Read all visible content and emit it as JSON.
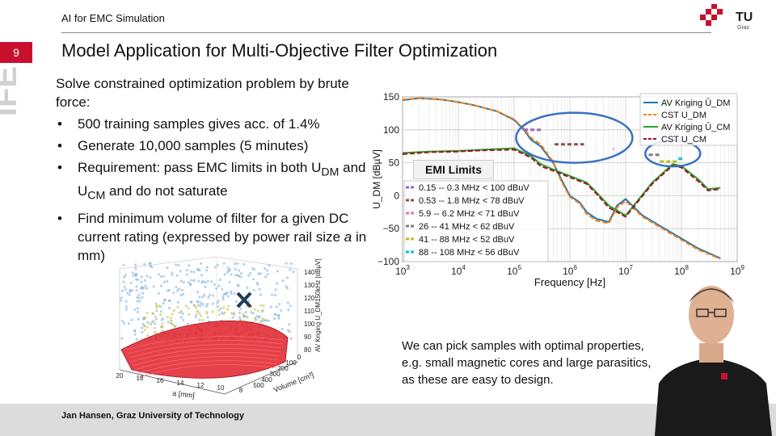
{
  "header": {
    "course": "AI for EMC Simulation",
    "slide_number": "9",
    "side_brand": "IFE",
    "title": "Model Application for Multi-Objective Filter Optimization",
    "logo_text": "TU",
    "logo_sub": "Graz"
  },
  "content": {
    "intro": "Solve constrained optimization problem by brute force:",
    "bullets": [
      "500 training samples gives acc. of 1.4%",
      "Generate 10,000 samples (5 minutes)",
      "Requirement: pass EMC limits in both U",
      "Find minimum volume of filter for a given DC current rating (expressed by power rail size a in mm)"
    ],
    "b3_sub1": "DM",
    "b3_mid": " and U",
    "b3_sub2": "CM",
    "b3_end": " and do not saturate",
    "b4_pre": "Find minimum volume of filter for a given DC current rating (expressed by power rail size ",
    "b4_var": "a",
    "b4_post": " in mm)"
  },
  "emi_label": "EMI Limits",
  "caption": {
    "line1": "We can pick samples with optimal properties,",
    "line2": "e.g. small magnetic cores and large parasitics,",
    "line3": "as these are easy to design."
  },
  "footer": {
    "author": "Jan Hansen, Graz University of Technology"
  },
  "colors": {
    "accent": "#c8102e",
    "line_blue": "#1f77b4",
    "line_orange": "#ff7f0e",
    "line_green": "#2ca02c",
    "line_darkred": "#a0102a",
    "ellipse": "#3a6fc4"
  },
  "chart_data": [
    {
      "type": "line",
      "title": "",
      "xlabel": "Frequency [Hz]",
      "ylabel": "U_DM [dBµV]",
      "x_scale": "log",
      "xlim": [
        1000,
        1000000000
      ],
      "ylim": [
        -100,
        150
      ],
      "x_ticks": [
        "10^3",
        "10^4",
        "10^5",
        "10^6",
        "10^7",
        "10^8",
        "10^9"
      ],
      "y_ticks": [
        -100,
        -50,
        0,
        50,
        100,
        150
      ],
      "grid": true,
      "legend_position": "top-right",
      "series": [
        {
          "name": "AV Kriging Û_DM",
          "color": "#1f77b4",
          "style": "solid",
          "x": [
            1000,
            2000,
            5000,
            10000,
            20000,
            50000,
            100000,
            150000,
            200000,
            300000,
            500000,
            700000,
            1000000,
            1500000,
            2000000,
            3000000,
            5000000,
            7000000,
            10000000,
            20000000,
            50000000,
            100000000,
            200000000,
            500000000
          ],
          "y": [
            145,
            148,
            146,
            142,
            137,
            128,
            115,
            100,
            85,
            75,
            50,
            25,
            0,
            -10,
            -25,
            -35,
            -40,
            -15,
            -5,
            -30,
            -50,
            -65,
            -80,
            -95
          ]
        },
        {
          "name": "CST U_DM",
          "color": "#ff7f0e",
          "style": "dashed",
          "x": [
            1000,
            2000,
            5000,
            10000,
            20000,
            50000,
            100000,
            150000,
            200000,
            300000,
            500000,
            700000,
            1000000,
            1500000,
            2000000,
            3000000,
            5000000,
            7000000,
            10000000,
            20000000,
            50000000,
            100000000,
            200000000,
            500000000
          ],
          "y": [
            146,
            148,
            146,
            142,
            137,
            128,
            116,
            102,
            88,
            78,
            52,
            22,
            -2,
            -12,
            -28,
            -38,
            -42,
            -18,
            -8,
            -32,
            -52,
            -67,
            -82,
            -96
          ]
        },
        {
          "name": "AV Kriging Û_CM",
          "color": "#2ca02c",
          "style": "solid",
          "x": [
            1000,
            3000,
            10000,
            30000,
            100000,
            200000,
            300000,
            500000,
            1000000,
            2000000,
            3000000,
            5000000,
            10000000,
            30000000,
            70000000,
            100000000,
            200000000,
            300000000,
            500000000
          ],
          "y": [
            65,
            67,
            68,
            70,
            72,
            60,
            48,
            40,
            30,
            20,
            5,
            -15,
            -30,
            20,
            48,
            45,
            25,
            10,
            12
          ]
        },
        {
          "name": "CST U_CM",
          "color": "#a0102a",
          "style": "dashed",
          "x": [
            1000,
            3000,
            10000,
            30000,
            100000,
            200000,
            300000,
            500000,
            1000000,
            2000000,
            3000000,
            5000000,
            10000000,
            30000000,
            70000000,
            100000000,
            200000000,
            300000000,
            500000000
          ],
          "y": [
            63,
            66,
            67,
            69,
            70,
            58,
            45,
            38,
            28,
            18,
            3,
            -18,
            -32,
            18,
            46,
            43,
            22,
            8,
            10
          ]
        },
        {
          "name": "0.15 -- 0.3 MHz < 100 dBuV",
          "color": "#9467bd",
          "style": "limit",
          "x": [
            150000,
            300000
          ],
          "y": [
            100,
            100
          ]
        },
        {
          "name": "0.53 -- 1.8 MHz < 78 dBuV",
          "color": "#8c564b",
          "style": "limit",
          "x": [
            530000,
            1800000
          ],
          "y": [
            78,
            78
          ]
        },
        {
          "name": "5.9 -- 6.2 MHz < 71 dBuV",
          "color": "#e377c2",
          "style": "limit",
          "x": [
            5900000,
            6200000
          ],
          "y": [
            71,
            71
          ]
        },
        {
          "name": "26 -- 41 MHz < 62 dBuV",
          "color": "#7f7f7f",
          "style": "limit",
          "x": [
            26000000,
            41000000
          ],
          "y": [
            62,
            62
          ]
        },
        {
          "name": "41 -- 88 MHz < 52 dBuV",
          "color": "#bcbd22",
          "style": "limit",
          "x": [
            41000000,
            88000000
          ],
          "y": [
            52,
            52
          ]
        },
        {
          "name": "88 -- 108 MHz < 56 dBuV",
          "color": "#17becf",
          "style": "limit",
          "x": [
            88000000,
            108000000
          ],
          "y": [
            56,
            56
          ]
        }
      ]
    },
    {
      "type": "scatter",
      "title": "",
      "xlabel": "a [mm]",
      "ylabel": "Volume [cm³]",
      "zlabel": "AV Kriging U_DM150kHz [dBµV]",
      "x_ticks": [
        "20",
        "18",
        "16",
        "14",
        "12",
        "10",
        "8"
      ],
      "y_ticks": [
        "500",
        "400",
        "300",
        "200",
        "100",
        "0"
      ],
      "z_ticks": [
        "80",
        "90",
        "100",
        "110",
        "120",
        "130",
        "140"
      ]
    }
  ]
}
